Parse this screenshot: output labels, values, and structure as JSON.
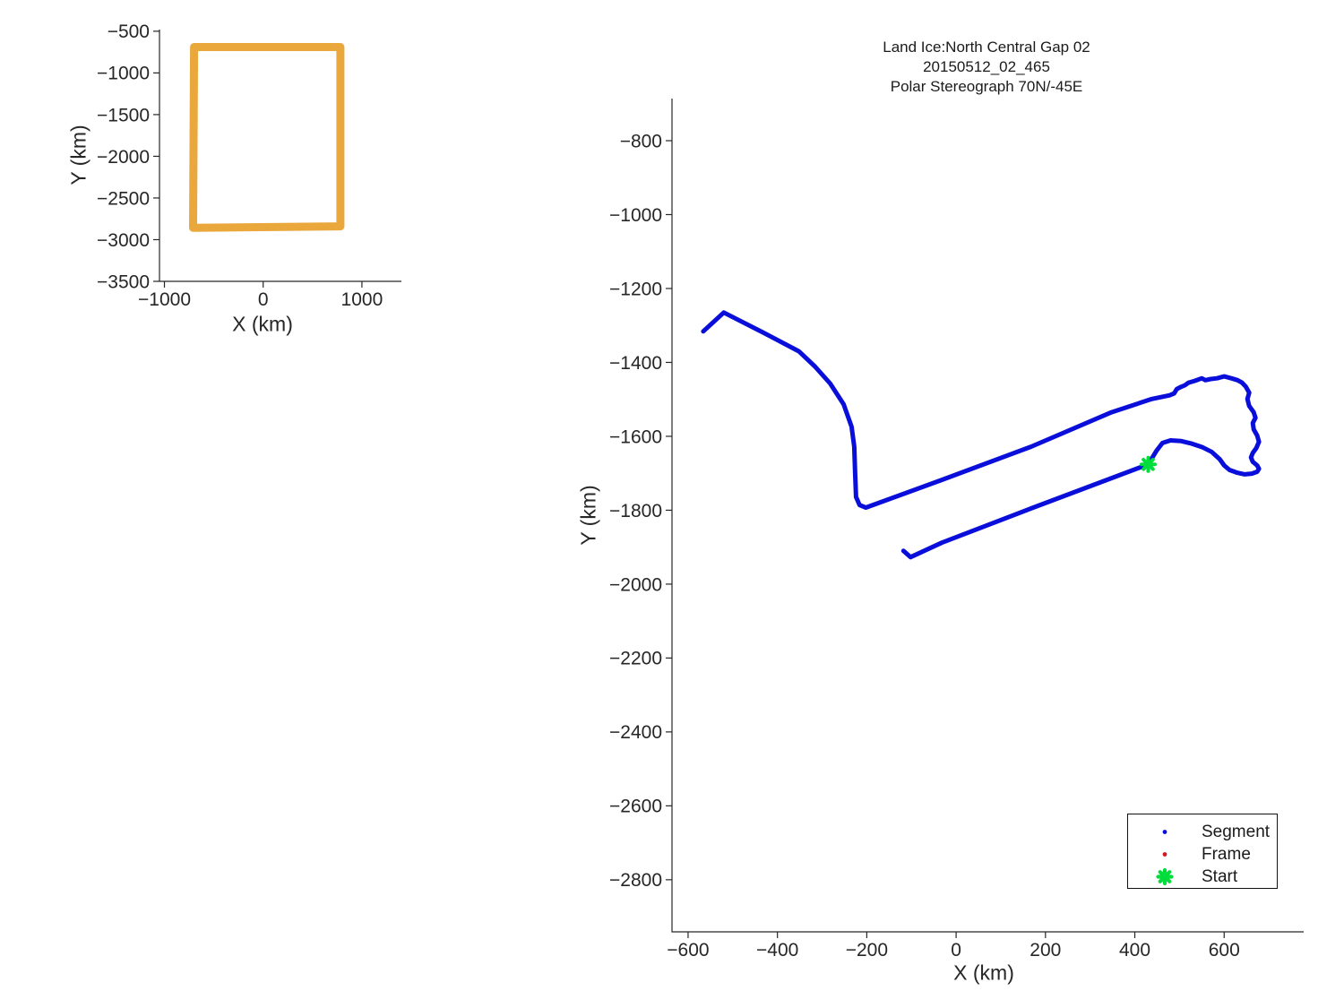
{
  "figure": {
    "bg": "#ffffff",
    "axis_color": "#262626",
    "text_color": "#262626"
  },
  "title": {
    "lines": [
      "Land Ice:North Central Gap 02",
      "20150512_02_465",
      "Polar Stereograph 70N/-45E"
    ]
  },
  "legend": {
    "bg": "#ffffff",
    "border_color": "#111111",
    "position": "bottom-right",
    "entries": [
      {
        "label": "Segment",
        "marker": "dot",
        "color": "#0a0edb"
      },
      {
        "label": "Frame",
        "marker": "dot",
        "color": "#d01825"
      },
      {
        "label": "Start",
        "marker": "asterisk",
        "color": "#00dc3c"
      }
    ]
  },
  "chart_data": [
    {
      "id": "overview_inset",
      "type": "line",
      "title": "",
      "xlabel": "X (km)",
      "ylabel": "Y (km)",
      "xlim": [
        -1050,
        1400
      ],
      "ylim": [
        -3500,
        -480
      ],
      "xticks": [
        -1000,
        0,
        1000
      ],
      "yticks": [
        -500,
        -1000,
        -1500,
        -2000,
        -2500,
        -3000,
        -3500
      ],
      "grid": false,
      "series": [
        {
          "name": "coverage-outline",
          "color": "#e9a73c",
          "line_width": 9,
          "closed": true,
          "points": [
            [
              -700,
              -690
            ],
            [
              782,
              -690
            ],
            [
              782,
              -2840
            ],
            [
              -710,
              -2858
            ]
          ]
        }
      ]
    },
    {
      "id": "main_track",
      "type": "line",
      "title": "Land Ice:North Central Gap 02\n20150512_02_465\nPolar Stereograph 70N/-45E",
      "xlabel": "X (km)",
      "ylabel": "Y (km)",
      "xlim": [
        -636,
        778
      ],
      "ylim": [
        -2941,
        -686
      ],
      "xticks": [
        -600,
        -400,
        -200,
        0,
        200,
        400,
        600
      ],
      "yticks": [
        -800,
        -1000,
        -1200,
        -1400,
        -1600,
        -1800,
        -2000,
        -2200,
        -2400,
        -2600,
        -2800
      ],
      "grid": false,
      "legend_entries": [
        "Segment",
        "Frame",
        "Start"
      ],
      "series": [
        {
          "name": "Segment",
          "color": "#0a0edb",
          "line_width": 5,
          "closed": false,
          "points": [
            [
              -566,
              -1316
            ],
            [
              -520,
              -1265
            ],
            [
              -432,
              -1319
            ],
            [
              -352,
              -1370
            ],
            [
              -316,
              -1411
            ],
            [
              -282,
              -1457
            ],
            [
              -252,
              -1513
            ],
            [
              -234,
              -1574
            ],
            [
              -228,
              -1628
            ],
            [
              -226,
              -1701
            ],
            [
              -224,
              -1764
            ],
            [
              -216,
              -1786
            ],
            [
              -202,
              -1793
            ],
            [
              -32,
              -1718
            ],
            [
              168,
              -1628
            ],
            [
              348,
              -1535
            ],
            [
              438,
              -1499
            ],
            [
              478,
              -1489
            ],
            [
              488,
              -1484
            ],
            [
              494,
              -1472
            ],
            [
              502,
              -1467
            ],
            [
              512,
              -1462
            ],
            [
              520,
              -1455
            ],
            [
              534,
              -1450
            ],
            [
              550,
              -1443
            ],
            [
              558,
              -1448
            ],
            [
              570,
              -1445
            ],
            [
              584,
              -1443
            ],
            [
              600,
              -1438
            ],
            [
              616,
              -1443
            ],
            [
              630,
              -1448
            ],
            [
              640,
              -1455
            ],
            [
              648,
              -1465
            ],
            [
              656,
              -1482
            ],
            [
              652,
              -1499
            ],
            [
              656,
              -1518
            ],
            [
              666,
              -1535
            ],
            [
              670,
              -1550
            ],
            [
              664,
              -1564
            ],
            [
              666,
              -1581
            ],
            [
              674,
              -1598
            ],
            [
              678,
              -1615
            ],
            [
              672,
              -1632
            ],
            [
              664,
              -1645
            ],
            [
              660,
              -1657
            ],
            [
              664,
              -1669
            ],
            [
              674,
              -1679
            ],
            [
              678,
              -1688
            ],
            [
              674,
              -1696
            ],
            [
              662,
              -1701
            ],
            [
              646,
              -1703
            ],
            [
              628,
              -1698
            ],
            [
              612,
              -1691
            ],
            [
              600,
              -1679
            ],
            [
              590,
              -1662
            ],
            [
              572,
              -1642
            ],
            [
              552,
              -1630
            ],
            [
              528,
              -1620
            ],
            [
              504,
              -1613
            ],
            [
              480,
              -1611
            ],
            [
              462,
              -1618
            ],
            [
              448,
              -1640
            ],
            [
              430,
              -1676
            ],
            [
              348,
              -1713
            ],
            [
              168,
              -1795
            ],
            [
              -32,
              -1888
            ],
            [
              -102,
              -1927
            ],
            [
              -118,
              -1910
            ]
          ]
        }
      ],
      "markers": [
        {
          "name": "Start",
          "shape": "asterisk",
          "x": 430,
          "y": -1676,
          "color": "#00dc3c"
        }
      ]
    }
  ]
}
